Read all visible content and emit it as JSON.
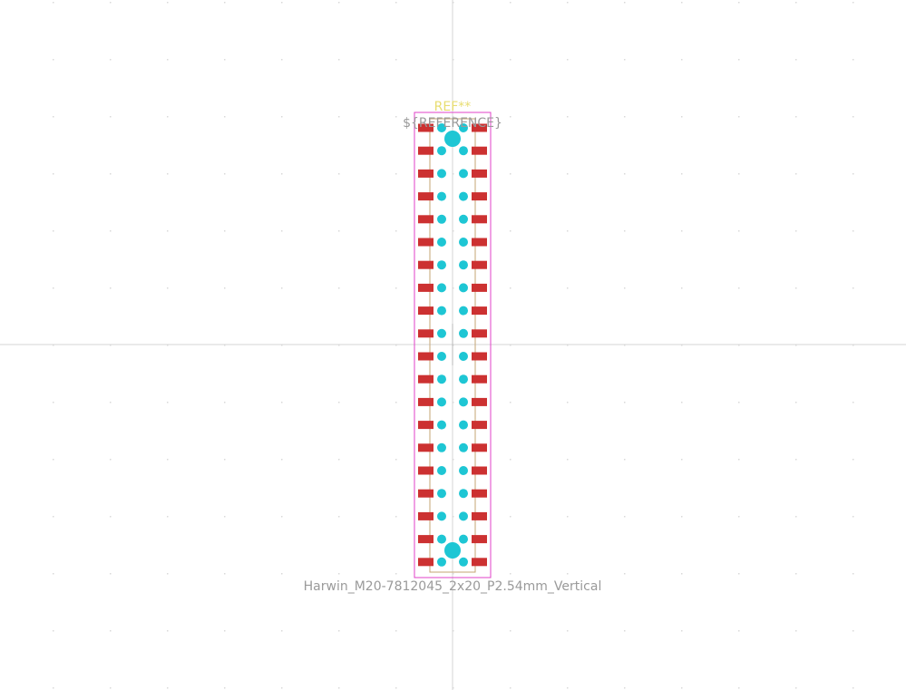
{
  "footprint": {
    "ref_designator": "REF**",
    "reference_field": "${REFERENCE}",
    "value_label": "Harwin_M20-7812045_2x20_P2.54mm_Vertical",
    "rows": 20,
    "columns": 2
  },
  "colors": {
    "background": "#ffffff",
    "grid_dot": "#d9d9d9",
    "axis_line": "#d6d6d6",
    "courtyard": "#e040c8",
    "fabrication": "#c4a473",
    "smd_pad": "#cc3131",
    "through_hole": "#1ec6d4",
    "ref_text": "#e8dd70",
    "field_text": "#9a9a9a"
  },
  "icons": {
    "origin_marker": "crosshair-icon"
  }
}
